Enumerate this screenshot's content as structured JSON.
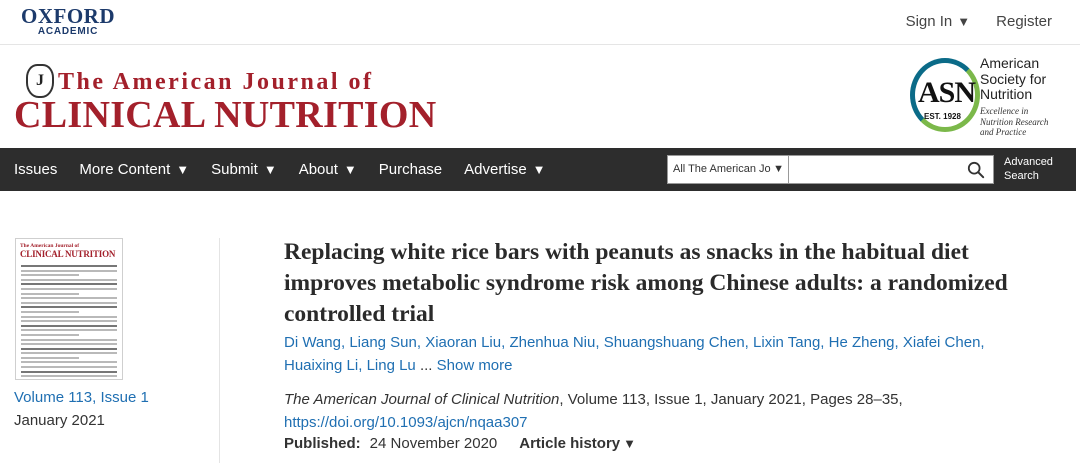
{
  "publisher": {
    "name": "OXFORD",
    "sub": "ACADEMIC"
  },
  "user": {
    "sign_in": "Sign In",
    "register": "Register"
  },
  "journal": {
    "line1": "The American Journal of",
    "line2": "CLINICAL NUTRITION",
    "emblem": "J"
  },
  "society": {
    "logo_text": "ASN",
    "est": "EST. 1928",
    "name_lines": [
      "American",
      "Society for",
      "Nutrition"
    ],
    "tagline_lines": [
      "Excellence in",
      "Nutrition Research",
      "and Practice"
    ],
    "colors": {
      "ring_blue": "#0b6b88",
      "ring_green": "#7bb84a"
    }
  },
  "nav": {
    "items": [
      {
        "label": "Issues",
        "dropdown": false
      },
      {
        "label": "More Content",
        "dropdown": true
      },
      {
        "label": "Submit",
        "dropdown": true
      },
      {
        "label": "About",
        "dropdown": true
      },
      {
        "label": "Purchase",
        "dropdown": false
      },
      {
        "label": "Advertise",
        "dropdown": true
      }
    ],
    "search_scope": "All The American Jou",
    "search_value": "",
    "advanced_search_line1": "Advanced",
    "advanced_search_line2": "Search"
  },
  "issue": {
    "volume_link": "Volume 113, Issue 1",
    "date": "January 2021",
    "cover_title_small": "The American Journal of",
    "cover_title_big": "CLINICAL NUTRITION"
  },
  "article": {
    "title": "Replacing white rice bars with peanuts as snacks in the habitual diet improves metabolic syndrome risk among Chinese adults: a randomized controlled trial",
    "authors": [
      "Di Wang",
      "Liang Sun",
      "Xiaoran Liu",
      "Zhenhua Niu",
      "Shuangshuang Chen",
      "Lixin Tang",
      "He Zheng",
      "Xiafei Chen",
      "Huaixing Li",
      "Ling Lu"
    ],
    "ellipsis": " ... ",
    "show_more": "Show more",
    "citation_journal": "The American Journal of Clinical Nutrition",
    "citation_rest": ", Volume 113, Issue 1, January 2021, Pages 28–35,",
    "doi": "https://doi.org/10.1093/ajcn/nqaa307",
    "published_label": "Published:",
    "published_date": "24 November 2020",
    "history_label": "Article history"
  },
  "colors": {
    "nav_bg": "#2d2d2d",
    "link": "#1f6fb2",
    "journal_red": "#a3202b",
    "oxford_blue": "#1c3a6b"
  },
  "icons": {
    "search": "search-icon",
    "dropdown": "caret-down-icon"
  }
}
